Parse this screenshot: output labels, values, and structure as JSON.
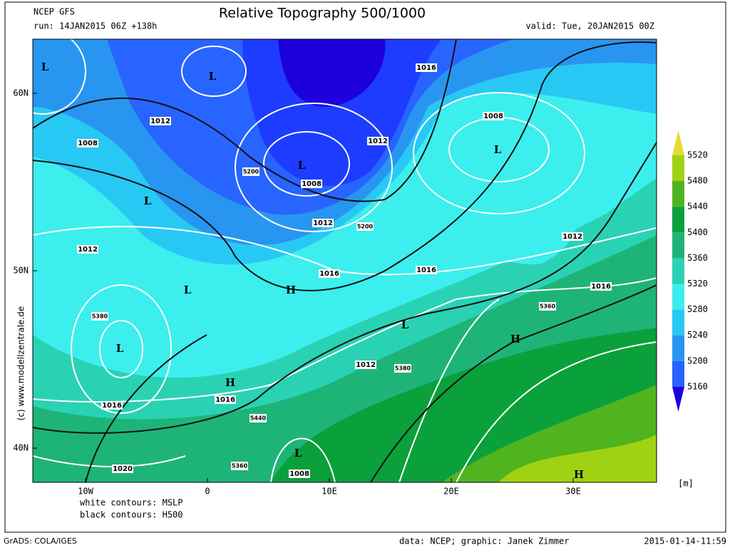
{
  "header": {
    "model": "NCEP GFS",
    "run": "run: 14JAN2015 06Z +138h",
    "title": "Relative Topography 500/1000",
    "valid": "valid: Tue, 20JAN2015 00Z"
  },
  "axes": {
    "lat": [
      "60N",
      "50N",
      "40N"
    ],
    "lon": [
      "10W",
      "0",
      "10E",
      "20E",
      "30E"
    ]
  },
  "legend": {
    "levels": [
      5520,
      5480,
      5440,
      5400,
      5360,
      5320,
      5280,
      5240,
      5200,
      5160
    ],
    "colors": [
      "#e6dc32",
      "#a0d214",
      "#50b41e",
      "#0aa03c",
      "#1eb478",
      "#2ad2b4",
      "#3ceeee",
      "#28c8f5",
      "#2896f0",
      "#2864ff",
      "#1e3cff",
      "#1e00dc"
    ],
    "unit": "[m]"
  },
  "notes": [
    "white contours: MSLP",
    "black contours: H500"
  ],
  "watermark": "(c) www.modellzentrale.de",
  "labels": [
    "L",
    "L",
    "1016",
    "1008",
    "L",
    "1012",
    "1008",
    "1012",
    "L",
    "5200",
    "1008",
    "L",
    "1012",
    "5200",
    "1012",
    "1012",
    "1016",
    "1016",
    "H",
    "1016",
    "L",
    "5360",
    "5380",
    "L",
    "H",
    "L",
    "1012",
    "5380",
    "H",
    "1016",
    "1016",
    "5440",
    "L",
    "5360",
    "1020",
    "1008",
    "H"
  ],
  "footer": {
    "left": "GrADS: COLA/IGES",
    "center": "data: NCEP; graphic: Janek Zimmer",
    "right": "2015-01-14-11:59"
  }
}
